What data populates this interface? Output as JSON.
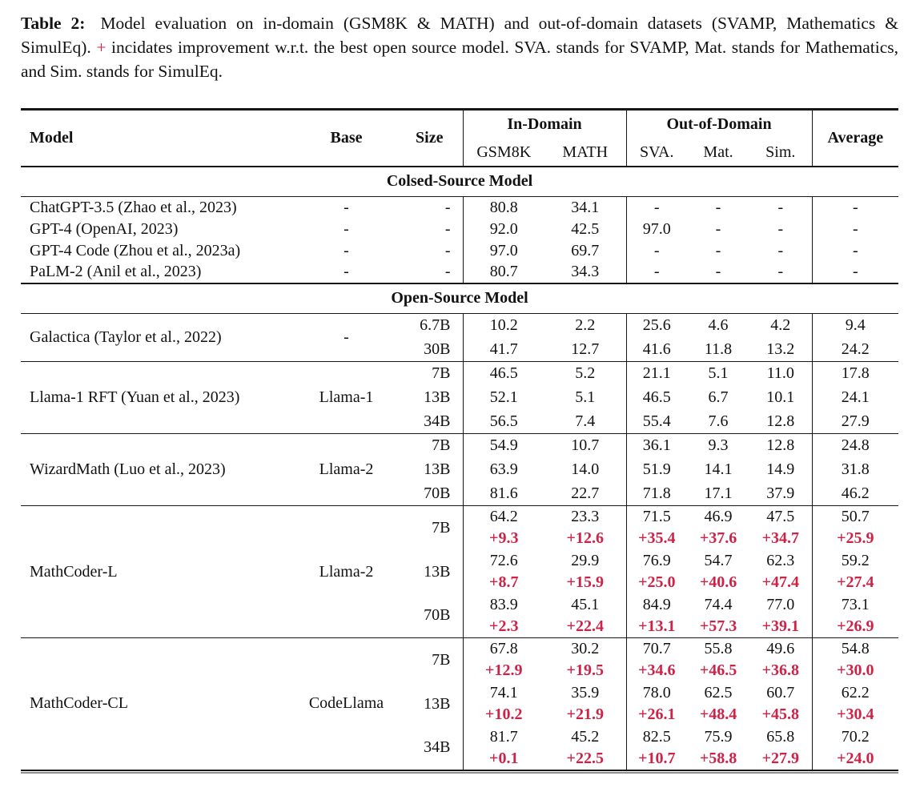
{
  "caption": {
    "label": "Table 2:",
    "text_before_plus": "Model evaluation on in-domain (GSM8K & MATH) and out-of-domain datasets (SVAMP, Mathematics & SimulEq).",
    "plus_symbol": "+",
    "text_after_plus": "incidates improvement w.r.t. the best open source model. SVA. stands for SVAMP, Mat. stands for Mathematics, and Sim. stands for SimulEq."
  },
  "table": {
    "columns": {
      "model": "Model",
      "base": "Base",
      "size": "Size",
      "in_domain": "In-Domain",
      "out_of_domain": "Out-of-Domain",
      "average": "Average",
      "sub": [
        "GSM8K",
        "MATH",
        "SVA.",
        "Mat.",
        "Sim."
      ]
    },
    "sections": [
      {
        "title": "Colsed-Source Model",
        "groups": [
          {
            "rows": [
              {
                "model": "ChatGPT-3.5 (Zhao et al., 2023)",
                "base": "-",
                "size": "-",
                "values": [
                  "80.8",
                  "34.1",
                  "-",
                  "-",
                  "-",
                  "-"
                ]
              },
              {
                "model": "GPT-4 (OpenAI, 2023)",
                "base": "-",
                "size": "-",
                "values": [
                  "92.0",
                  "42.5",
                  "97.0",
                  "-",
                  "-",
                  "-"
                ]
              },
              {
                "model": "GPT-4 Code (Zhou et al., 2023a)",
                "base": "-",
                "size": "-",
                "values": [
                  "97.0",
                  "69.7",
                  "-",
                  "-",
                  "-",
                  "-"
                ]
              },
              {
                "model": "PaLM-2 (Anil et al., 2023)",
                "base": "-",
                "size": "-",
                "values": [
                  "80.7",
                  "34.3",
                  "-",
                  "-",
                  "-",
                  "-"
                ]
              }
            ]
          }
        ]
      },
      {
        "title": "Open-Source Model",
        "groups": [
          {
            "model": "Galactica (Taylor et al., 2022)",
            "base": "-",
            "rows": [
              {
                "size": "6.7B",
                "values": [
                  "10.2",
                  "2.2",
                  "25.6",
                  "4.6",
                  "4.2",
                  "9.4"
                ]
              },
              {
                "size": "30B",
                "values": [
                  "41.7",
                  "12.7",
                  "41.6",
                  "11.8",
                  "13.2",
                  "24.2"
                ]
              }
            ]
          },
          {
            "model": "Llama-1 RFT (Yuan et al., 2023)",
            "base": "Llama-1",
            "rows": [
              {
                "size": "7B",
                "values": [
                  "46.5",
                  "5.2",
                  "21.1",
                  "5.1",
                  "11.0",
                  "17.8"
                ]
              },
              {
                "size": "13B",
                "values": [
                  "52.1",
                  "5.1",
                  "46.5",
                  "6.7",
                  "10.1",
                  "24.1"
                ]
              },
              {
                "size": "34B",
                "values": [
                  "56.5",
                  "7.4",
                  "55.4",
                  "7.6",
                  "12.8",
                  "27.9"
                ]
              }
            ]
          },
          {
            "model": "WizardMath (Luo et al., 2023)",
            "base": "Llama-2",
            "rows": [
              {
                "size": "7B",
                "values": [
                  "54.9",
                  "10.7",
                  "36.1",
                  "9.3",
                  "12.8",
                  "24.8"
                ]
              },
              {
                "size": "13B",
                "values": [
                  "63.9",
                  "14.0",
                  "51.9",
                  "14.1",
                  "14.9",
                  "31.8"
                ]
              },
              {
                "size": "70B",
                "values": [
                  "81.6",
                  "22.7",
                  "71.8",
                  "17.1",
                  "37.9",
                  "46.2"
                ]
              }
            ]
          },
          {
            "model": "MathCoder-L",
            "base": "Llama-2",
            "rows": [
              {
                "size": "7B",
                "values": [
                  "64.2",
                  "23.3",
                  "71.5",
                  "46.9",
                  "47.5",
                  "50.7"
                ],
                "deltas": [
                  "+9.3",
                  "+12.6",
                  "+35.4",
                  "+37.6",
                  "+34.7",
                  "+25.9"
                ]
              },
              {
                "size": "13B",
                "values": [
                  "72.6",
                  "29.9",
                  "76.9",
                  "54.7",
                  "62.3",
                  "59.2"
                ],
                "deltas": [
                  "+8.7",
                  "+15.9",
                  "+25.0",
                  "+40.6",
                  "+47.4",
                  "+27.4"
                ]
              },
              {
                "size": "70B",
                "values": [
                  "83.9",
                  "45.1",
                  "84.9",
                  "74.4",
                  "77.0",
                  "73.1"
                ],
                "deltas": [
                  "+2.3",
                  "+22.4",
                  "+13.1",
                  "+57.3",
                  "+39.1",
                  "+26.9"
                ]
              }
            ]
          },
          {
            "model": "MathCoder-CL",
            "base": "CodeLlama",
            "rows": [
              {
                "size": "7B",
                "values": [
                  "67.8",
                  "30.2",
                  "70.7",
                  "55.8",
                  "49.6",
                  "54.8"
                ],
                "deltas": [
                  "+12.9",
                  "+19.5",
                  "+34.6",
                  "+46.5",
                  "+36.8",
                  "+30.0"
                ]
              },
              {
                "size": "13B",
                "values": [
                  "74.1",
                  "35.9",
                  "78.0",
                  "62.5",
                  "60.7",
                  "62.2"
                ],
                "deltas": [
                  "+10.2",
                  "+21.9",
                  "+26.1",
                  "+48.4",
                  "+45.8",
                  "+30.4"
                ]
              },
              {
                "size": "34B",
                "values": [
                  "81.7",
                  "45.2",
                  "82.5",
                  "75.9",
                  "65.8",
                  "70.2"
                ],
                "deltas": [
                  "+0.1",
                  "+22.5",
                  "+10.7",
                  "+58.8",
                  "+27.9",
                  "+24.0"
                ]
              }
            ]
          }
        ]
      }
    ]
  },
  "colors": {
    "delta_red": "#ce2247",
    "rule_black": "#161616"
  }
}
